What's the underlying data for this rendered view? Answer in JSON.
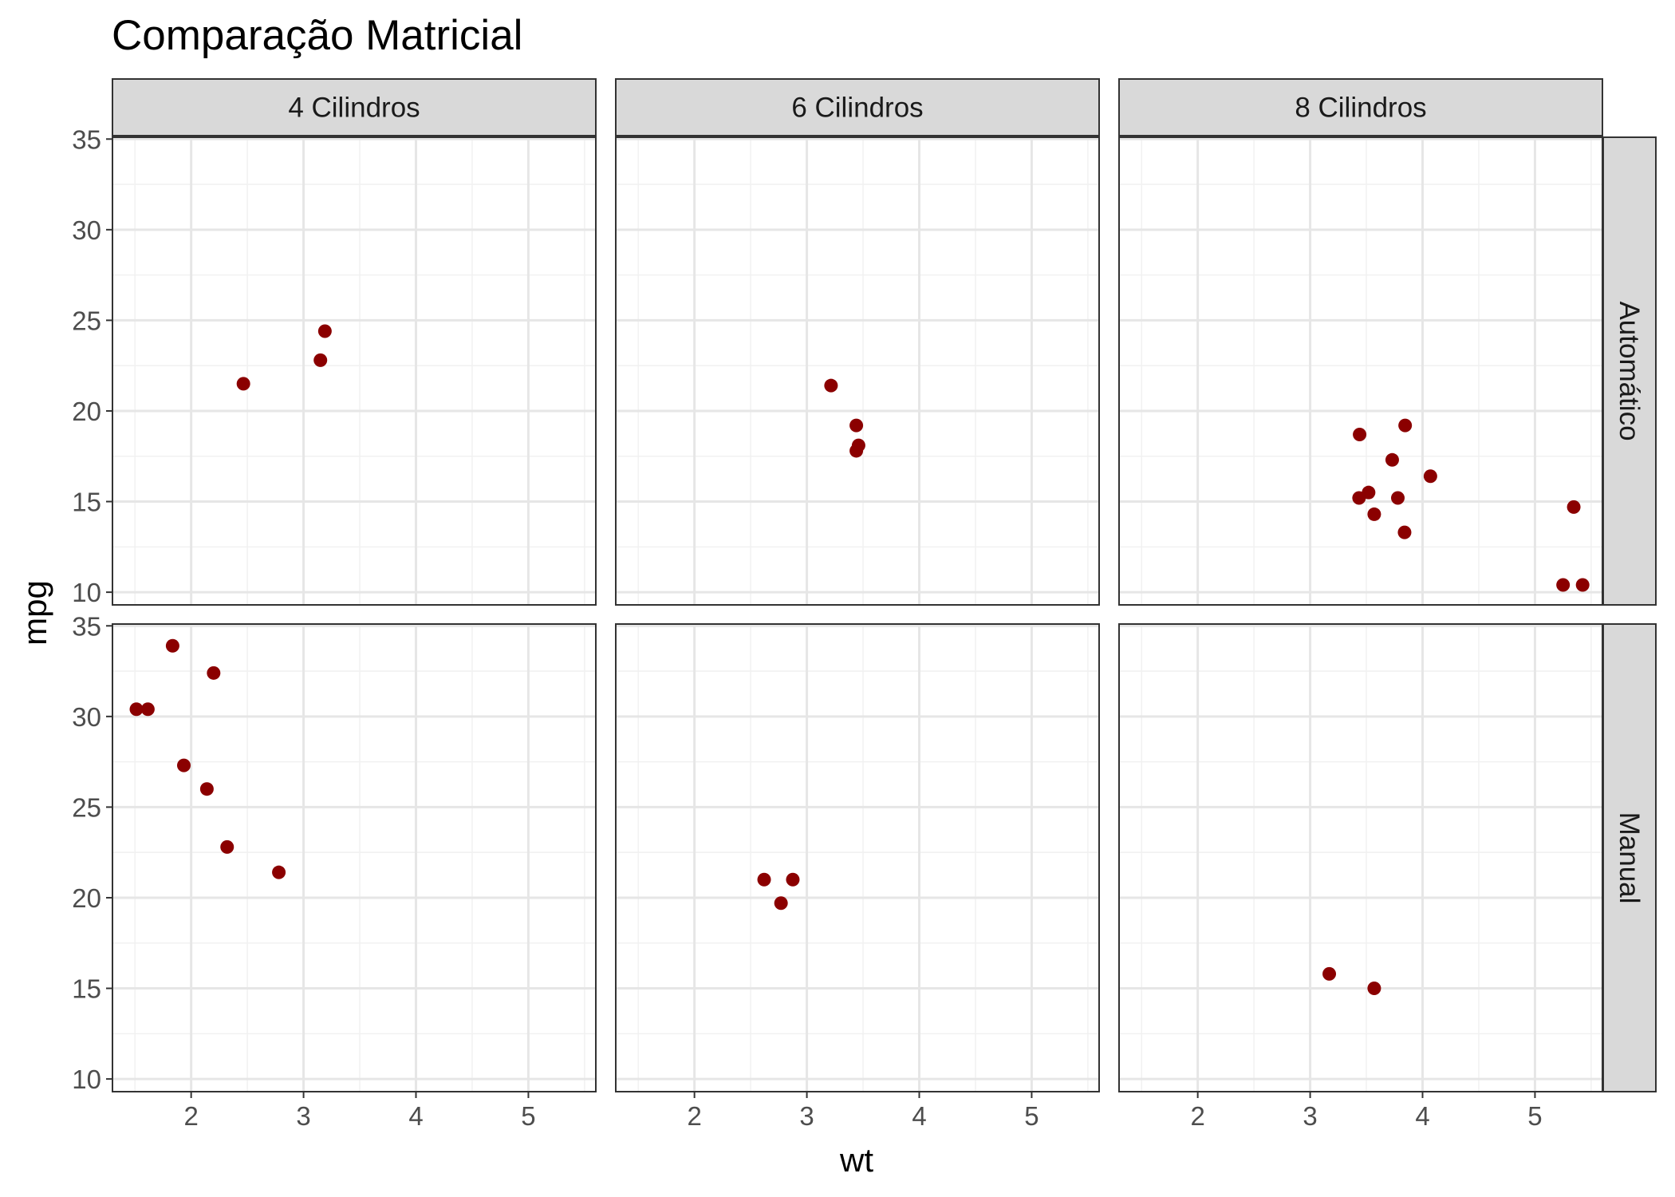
{
  "chart_data": {
    "type": "scatter",
    "title": "Comparação Matricial",
    "xlabel": "wt",
    "ylabel": "mpg",
    "xlim": [
      1.3,
      5.6
    ],
    "ylim": [
      9.3,
      35.1
    ],
    "x_ticks": [
      2,
      3,
      4,
      5
    ],
    "y_ticks": [
      10,
      15,
      20,
      25,
      30,
      35
    ],
    "grid": true,
    "point_color": "#8B0000",
    "column_facets": [
      "4 Cilindros",
      "6 Cilindros",
      "8 Cilindros"
    ],
    "row_facets": [
      "Automático",
      "Manual"
    ],
    "panels": [
      {
        "row": "Automático",
        "col": "4 Cilindros",
        "points": [
          [
            2.465,
            21.5
          ],
          [
            3.19,
            24.4
          ],
          [
            3.15,
            22.8
          ]
        ]
      },
      {
        "row": "Automático",
        "col": "6 Cilindros",
        "points": [
          [
            3.215,
            21.4
          ],
          [
            3.46,
            18.1
          ],
          [
            3.44,
            19.2
          ],
          [
            3.44,
            17.8
          ]
        ]
      },
      {
        "row": "Automático",
        "col": "8 Cilindros",
        "points": [
          [
            3.44,
            18.7
          ],
          [
            3.57,
            14.3
          ],
          [
            4.07,
            16.4
          ],
          [
            3.73,
            17.3
          ],
          [
            3.78,
            15.2
          ],
          [
            5.25,
            10.4
          ],
          [
            5.424,
            10.4
          ],
          [
            5.345,
            14.7
          ],
          [
            3.52,
            15.5
          ],
          [
            3.435,
            15.2
          ],
          [
            3.84,
            13.3
          ],
          [
            3.845,
            19.2
          ]
        ]
      },
      {
        "row": "Manual",
        "col": "4 Cilindros",
        "points": [
          [
            2.2,
            32.4
          ],
          [
            1.615,
            30.4
          ],
          [
            1.835,
            33.9
          ],
          [
            1.935,
            27.3
          ],
          [
            2.14,
            26.0
          ],
          [
            1.513,
            30.4
          ],
          [
            2.78,
            21.4
          ],
          [
            2.32,
            22.8
          ]
        ]
      },
      {
        "row": "Manual",
        "col": "6 Cilindros",
        "points": [
          [
            2.62,
            21.0
          ],
          [
            2.875,
            21.0
          ],
          [
            2.77,
            19.7
          ]
        ]
      },
      {
        "row": "Manual",
        "col": "8 Cilindros",
        "points": [
          [
            3.17,
            15.8
          ],
          [
            3.57,
            15.0
          ]
        ]
      }
    ]
  }
}
